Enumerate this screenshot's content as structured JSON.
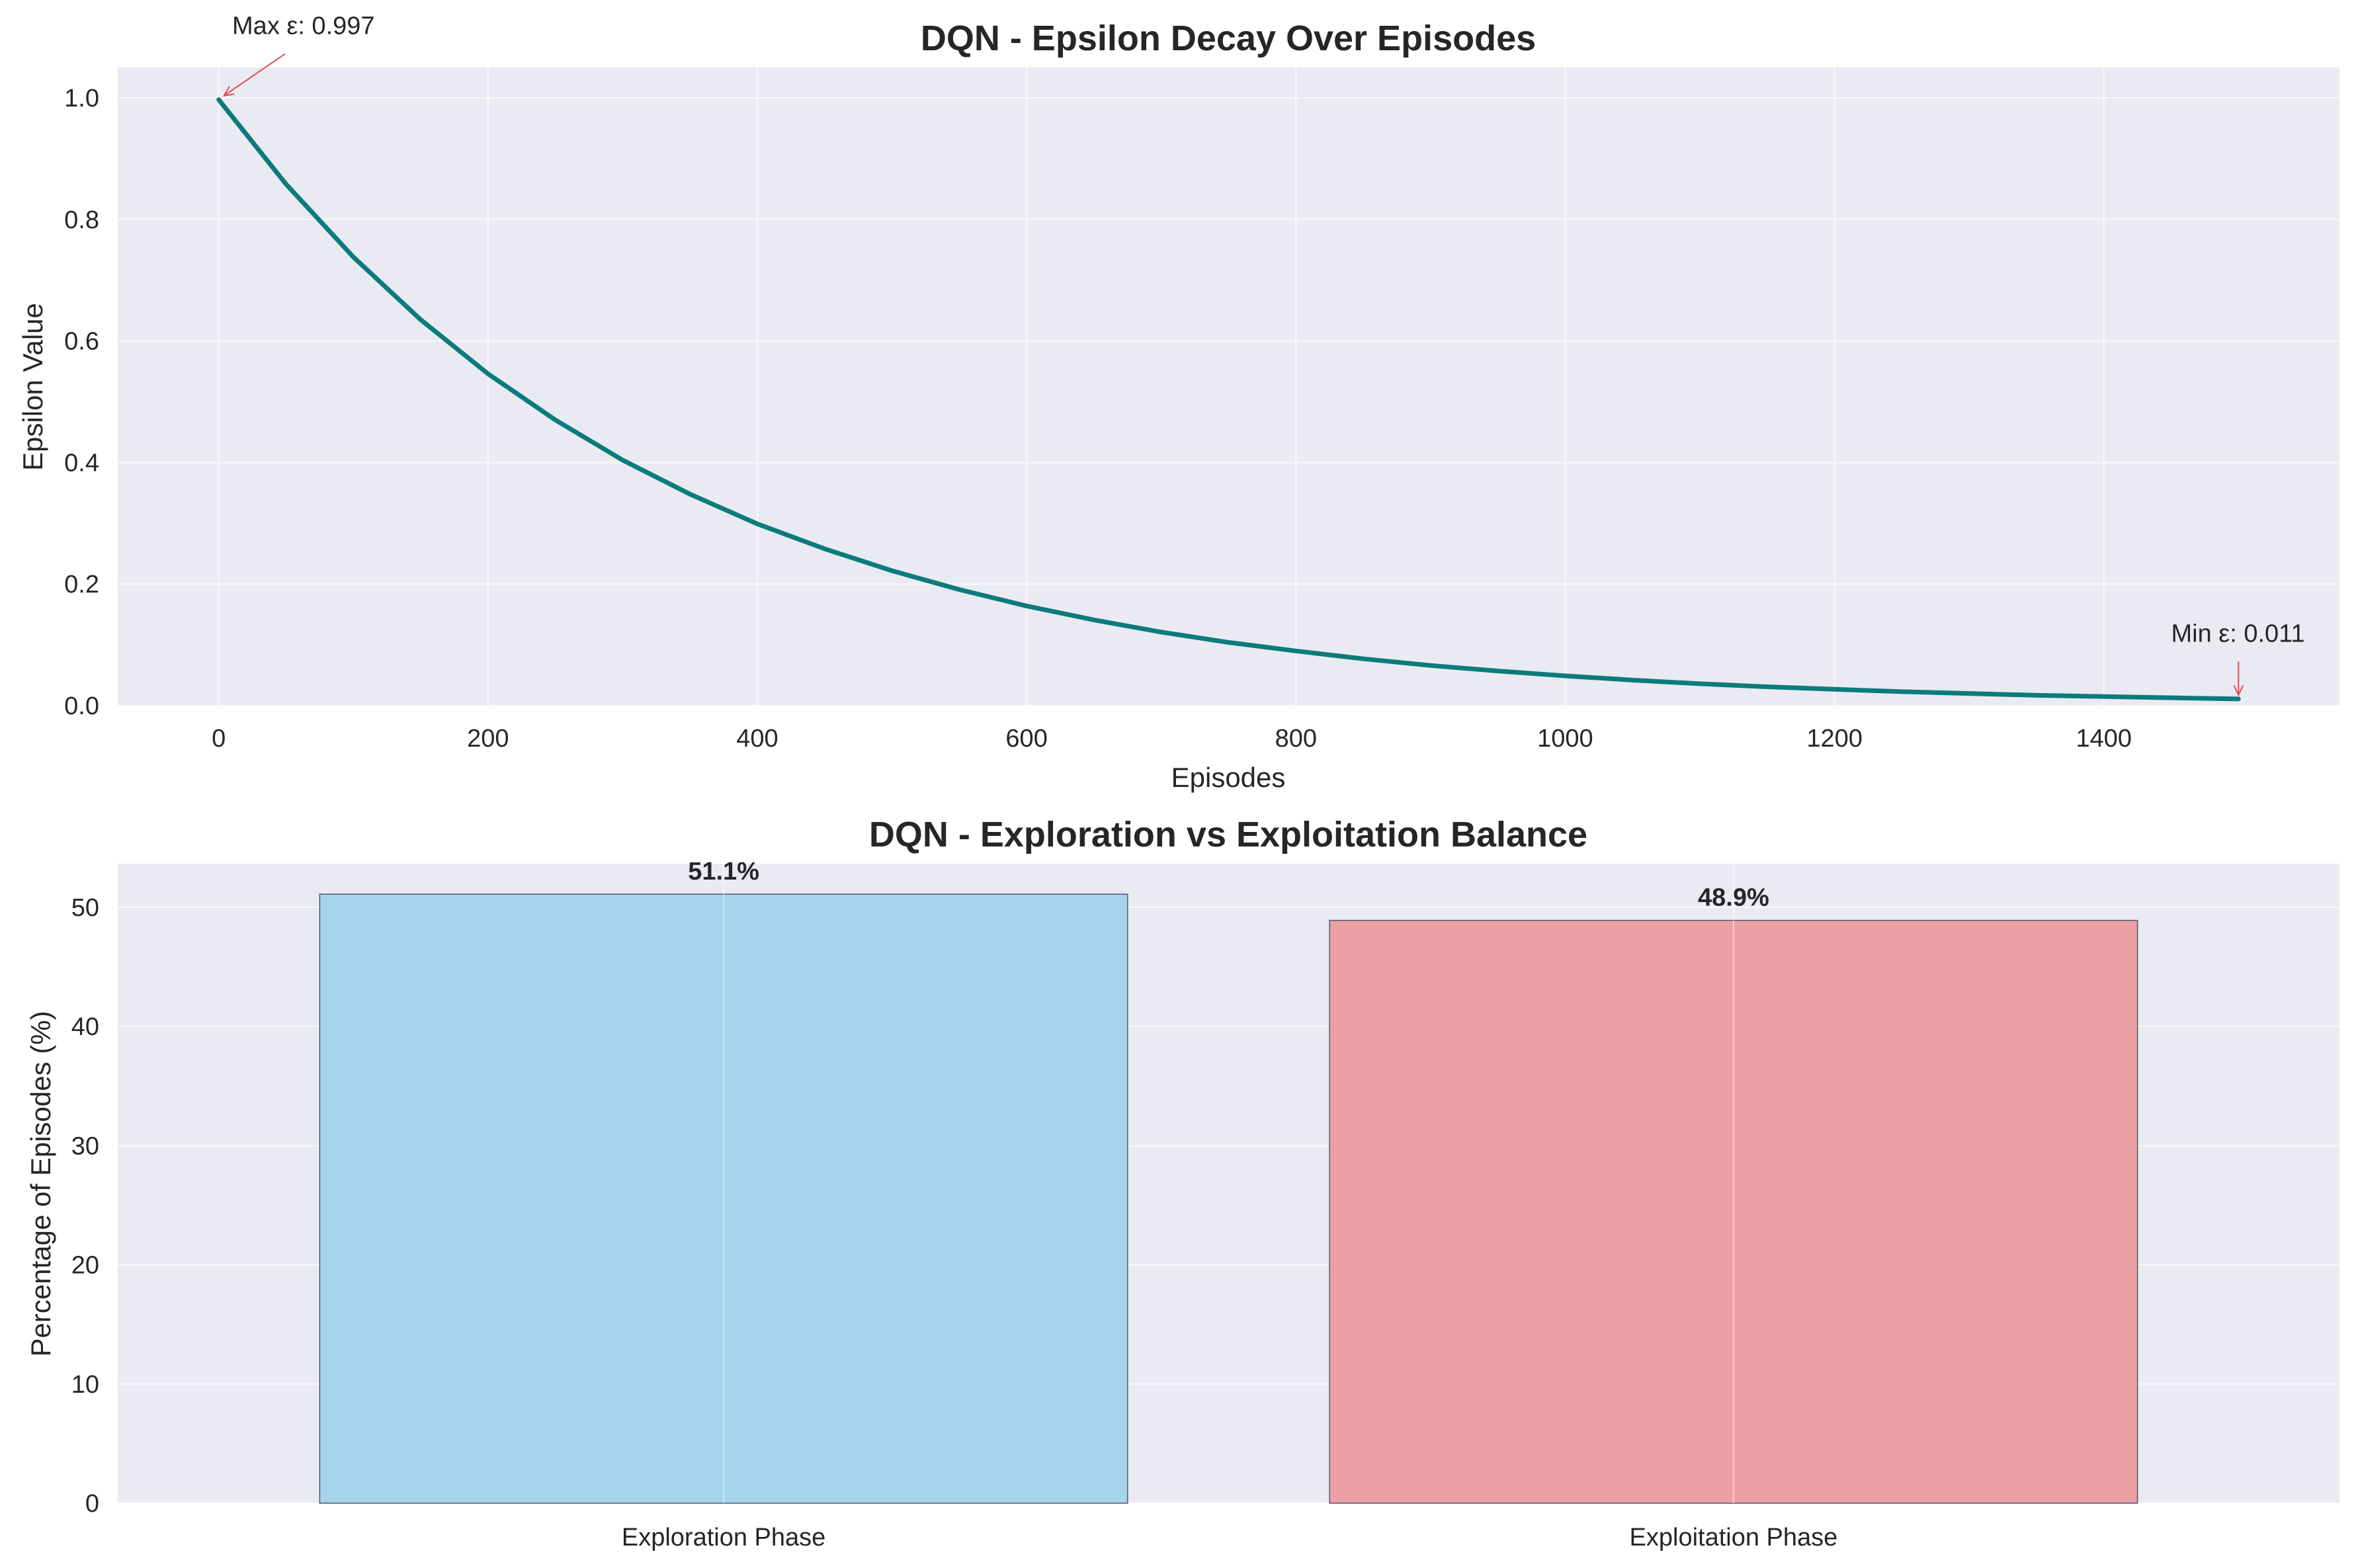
{
  "chart_data": [
    {
      "type": "line",
      "title": "DQN - Epsilon Decay Over Episodes",
      "xlabel": "Episodes",
      "ylabel": "Epsilon Value",
      "xlim": [
        -75,
        1575
      ],
      "ylim": [
        0,
        1.05
      ],
      "xticks": [
        0,
        200,
        400,
        600,
        800,
        1000,
        1200,
        1400
      ],
      "yticks": [
        0.0,
        0.2,
        0.4,
        0.6,
        0.8,
        1.0
      ],
      "ytick_labels": [
        "0.0",
        "0.2",
        "0.4",
        "0.6",
        "0.8",
        "1.0"
      ],
      "grid": true,
      "series": [
        {
          "color": "#0b7b7b",
          "x": [
            0,
            50,
            100,
            150,
            200,
            250,
            300,
            350,
            400,
            450,
            500,
            550,
            600,
            650,
            700,
            750,
            800,
            850,
            900,
            950,
            1000,
            1050,
            1100,
            1150,
            1200,
            1250,
            1300,
            1350,
            1400,
            1450,
            1500
          ],
          "y": [
            0.997,
            0.858,
            0.738,
            0.635,
            0.546,
            0.47,
            0.404,
            0.348,
            0.299,
            0.258,
            0.222,
            0.191,
            0.164,
            0.141,
            0.121,
            0.104,
            0.09,
            0.077,
            0.066,
            0.057,
            0.049,
            0.042,
            0.036,
            0.031,
            0.027,
            0.023,
            0.02,
            0.017,
            0.015,
            0.013,
            0.011
          ]
        }
      ],
      "annotations": [
        {
          "text": "Max ε: 0.997",
          "x": 0,
          "y": 0.997,
          "text_x": 10,
          "text_y": 1.105
        },
        {
          "text": "Min ε: 0.011",
          "x": 1500,
          "y": 0.011,
          "text_x": 1450,
          "text_y": 0.105
        }
      ]
    },
    {
      "type": "bar",
      "title": "DQN - Exploration vs Exploitation Balance",
      "xlabel": "",
      "ylabel": "Percentage of Episodes (%)",
      "categories": [
        "Exploration Phase",
        "Exploitation Phase"
      ],
      "values": [
        51.1,
        48.9
      ],
      "value_labels": [
        "51.1%",
        "48.9%"
      ],
      "colors": [
        "#a5d4eb",
        "#eda0a3"
      ],
      "ylim": [
        0,
        53.655
      ],
      "yticks": [
        0,
        10,
        20,
        30,
        40,
        50
      ],
      "ytick_labels": [
        "0",
        "10",
        "20",
        "30",
        "40",
        "50"
      ],
      "grid": true
    }
  ],
  "style": {
    "plot_background": "#eaeaf2",
    "grid_color": "#ffffff",
    "line_color": "#0b7b7b",
    "arrow_color": "#e24a4a",
    "bar_edge_color": "#4c5a6b"
  }
}
